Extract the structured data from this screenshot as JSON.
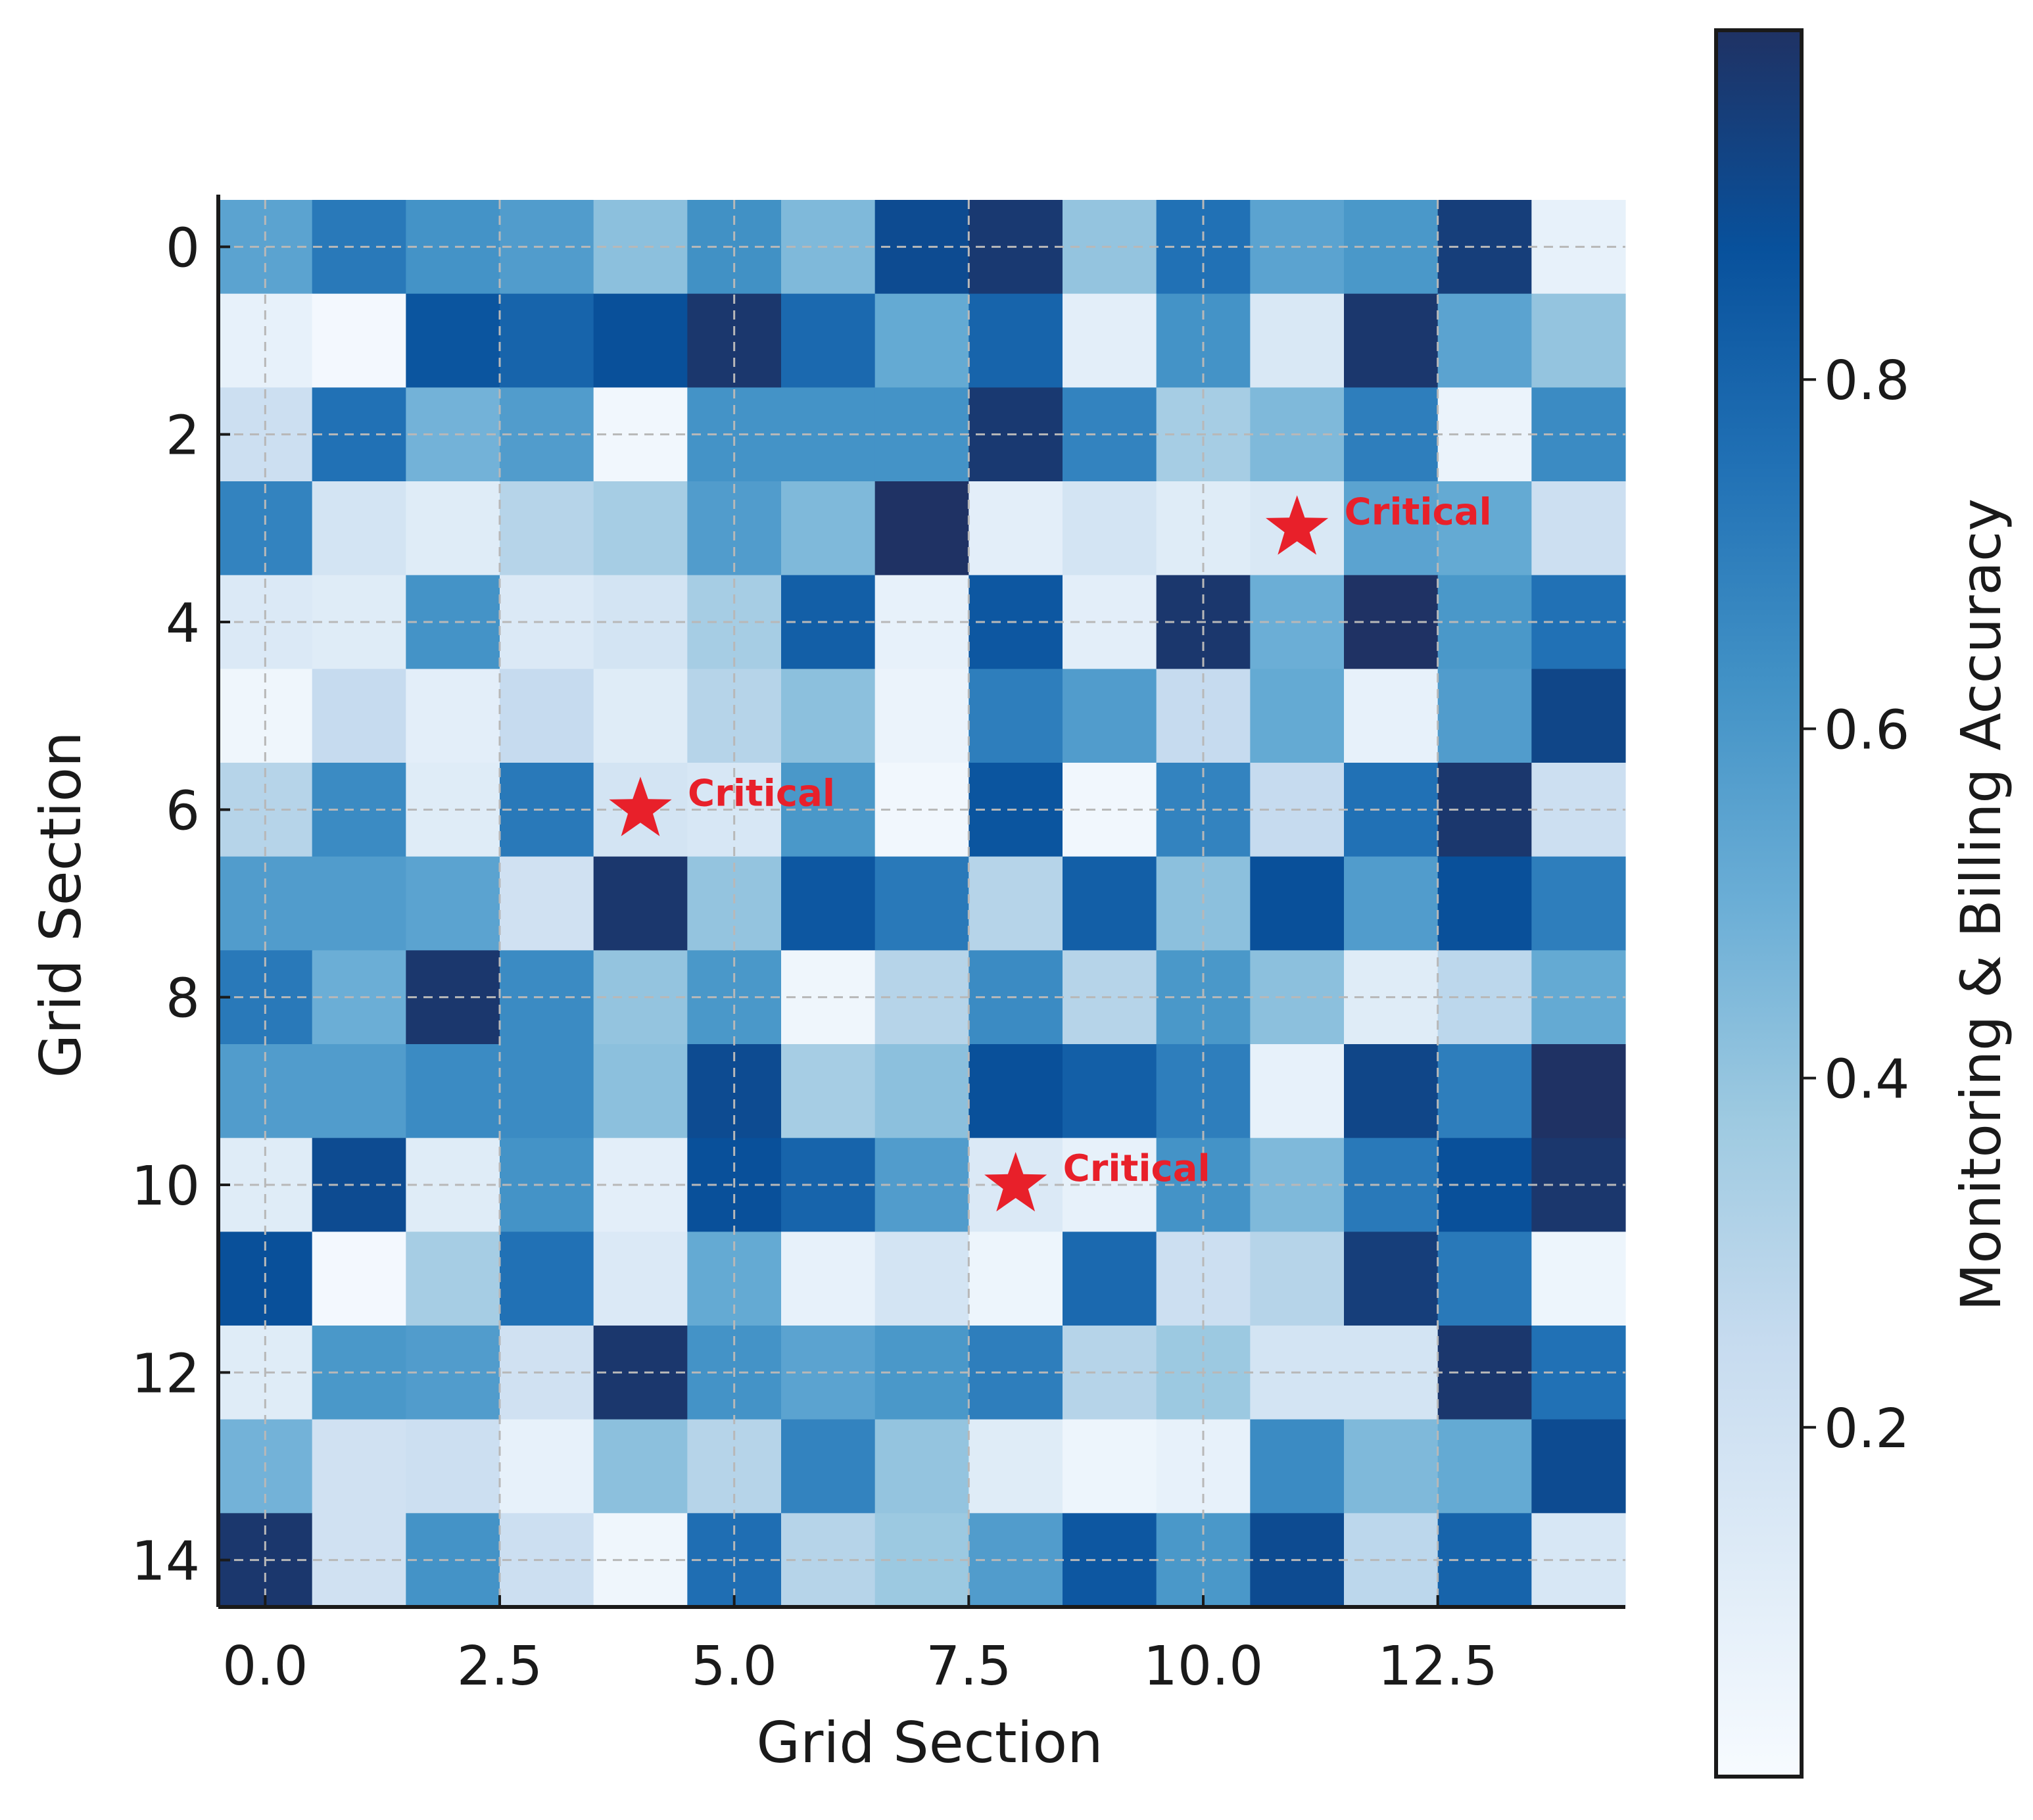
{
  "chart_data": {
    "type": "heatmap",
    "xlabel": "Grid Section",
    "ylabel": "Grid Section",
    "colorbar_label": "Monitoring & Billing Accuracy",
    "colormap": "Blues",
    "vmin": 0.0,
    "vmax": 1.0,
    "xlim": [
      -0.5,
      14.5
    ],
    "ylim": [
      14.5,
      -0.5
    ],
    "x_ticks": [
      0.0,
      2.5,
      5.0,
      7.5,
      10.0,
      12.5
    ],
    "x_tick_labels": [
      "0.0",
      "2.5",
      "5.0",
      "7.5",
      "10.0",
      "12.5"
    ],
    "y_ticks": [
      0,
      2,
      4,
      6,
      8,
      10,
      12,
      14
    ],
    "y_tick_labels": [
      "0",
      "2",
      "4",
      "6",
      "8",
      "10",
      "12",
      "14"
    ],
    "colorbar_ticks": [
      0.2,
      0.4,
      0.6,
      0.8
    ],
    "colorbar_tick_labels": [
      "0.2",
      "0.4",
      "0.6",
      "0.8"
    ],
    "grid": true,
    "values": [
      [
        0.55,
        0.72,
        0.62,
        0.58,
        0.42,
        0.63,
        0.45,
        0.9,
        0.97,
        0.4,
        0.75,
        0.55,
        0.6,
        0.95,
        0.08
      ],
      [
        0.08,
        0.02,
        0.86,
        0.8,
        0.88,
        0.98,
        0.78,
        0.52,
        0.8,
        0.1,
        0.62,
        0.15,
        0.98,
        0.55,
        0.4
      ],
      [
        0.22,
        0.75,
        0.48,
        0.58,
        0.03,
        0.62,
        0.62,
        0.62,
        0.97,
        0.68,
        0.35,
        0.45,
        0.7,
        0.06,
        0.65
      ],
      [
        0.68,
        0.18,
        0.12,
        0.3,
        0.35,
        0.58,
        0.45,
        1.0,
        0.1,
        0.18,
        0.12,
        0.15,
        0.55,
        0.52,
        0.22
      ],
      [
        0.14,
        0.12,
        0.62,
        0.14,
        0.18,
        0.35,
        0.82,
        0.08,
        0.85,
        0.1,
        0.98,
        0.5,
        1.0,
        0.6,
        0.75
      ],
      [
        0.04,
        0.25,
        0.1,
        0.25,
        0.12,
        0.3,
        0.42,
        0.06,
        0.7,
        0.58,
        0.25,
        0.52,
        0.08,
        0.58,
        0.92
      ],
      [
        0.3,
        0.65,
        0.12,
        0.72,
        0.18,
        0.16,
        0.6,
        0.03,
        0.86,
        0.03,
        0.68,
        0.25,
        0.75,
        0.98,
        0.22
      ],
      [
        0.58,
        0.58,
        0.55,
        0.2,
        0.98,
        0.4,
        0.85,
        0.72,
        0.3,
        0.82,
        0.42,
        0.88,
        0.58,
        0.88,
        0.7
      ],
      [
        0.72,
        0.5,
        0.98,
        0.65,
        0.4,
        0.6,
        0.04,
        0.3,
        0.65,
        0.3,
        0.6,
        0.42,
        0.12,
        0.28,
        0.52
      ],
      [
        0.58,
        0.58,
        0.65,
        0.65,
        0.42,
        0.9,
        0.35,
        0.42,
        0.88,
        0.82,
        0.7,
        0.08,
        0.92,
        0.7,
        1.0
      ],
      [
        0.12,
        0.9,
        0.12,
        0.62,
        0.1,
        0.88,
        0.8,
        0.58,
        0.14,
        0.08,
        0.62,
        0.45,
        0.72,
        0.88,
        0.98
      ],
      [
        0.88,
        0.02,
        0.35,
        0.75,
        0.14,
        0.52,
        0.08,
        0.18,
        0.05,
        0.78,
        0.22,
        0.3,
        0.95,
        0.72,
        0.05
      ],
      [
        0.12,
        0.6,
        0.58,
        0.2,
        0.98,
        0.62,
        0.55,
        0.6,
        0.7,
        0.3,
        0.38,
        0.18,
        0.18,
        0.98,
        0.75
      ],
      [
        0.48,
        0.2,
        0.22,
        0.08,
        0.42,
        0.3,
        0.68,
        0.4,
        0.12,
        0.05,
        0.08,
        0.65,
        0.45,
        0.52,
        0.9
      ],
      [
        0.98,
        0.2,
        0.62,
        0.22,
        0.04,
        0.76,
        0.3,
        0.38,
        0.58,
        0.85,
        0.6,
        0.9,
        0.28,
        0.8,
        0.16
      ]
    ],
    "annotations": [
      {
        "x": 11,
        "y": 3,
        "label": "Critical",
        "marker": "star",
        "color": "#e8202a"
      },
      {
        "x": 4,
        "y": 6,
        "label": "Critical",
        "marker": "star",
        "color": "#e8202a"
      },
      {
        "x": 8,
        "y": 10,
        "label": "Critical",
        "marker": "star",
        "color": "#e8202a"
      }
    ]
  }
}
